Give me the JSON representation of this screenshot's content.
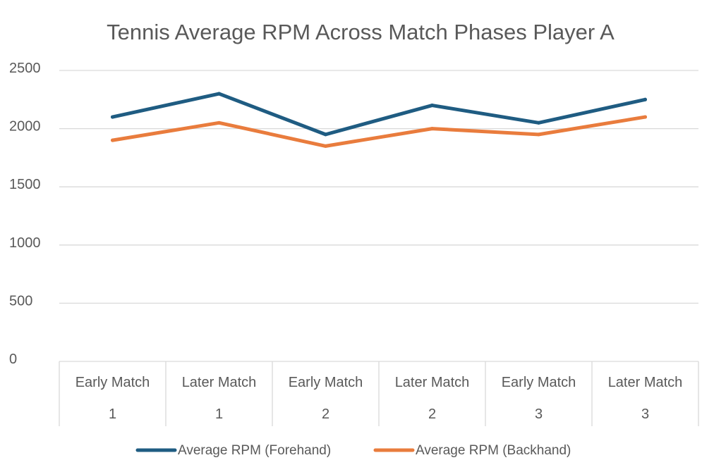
{
  "chart_data": {
    "type": "line",
    "title": "Tennis Average RPM Across Match Phases Player A",
    "xlabel": "",
    "ylabel": "",
    "categories": [
      [
        "Early Match",
        "1"
      ],
      [
        "Later Match",
        "1"
      ],
      [
        "Early Match",
        "2"
      ],
      [
        "Later Match",
        "2"
      ],
      [
        "Early Match",
        "3"
      ],
      [
        "Later Match",
        "3"
      ]
    ],
    "ylim": [
      0,
      2500
    ],
    "yticks": [
      "0",
      "500",
      "1000",
      "1500",
      "2000",
      "2500"
    ],
    "grid": true,
    "legend_position": "bottom",
    "series": [
      {
        "name": "Average RPM (Forehand)",
        "color": "#1F5C82",
        "values": [
          2100,
          2300,
          1950,
          2200,
          2050,
          2250
        ]
      },
      {
        "name": "Average RPM (Backhand)",
        "color": "#E97C3D",
        "values": [
          1900,
          2050,
          1850,
          2000,
          1950,
          2100
        ]
      }
    ]
  }
}
